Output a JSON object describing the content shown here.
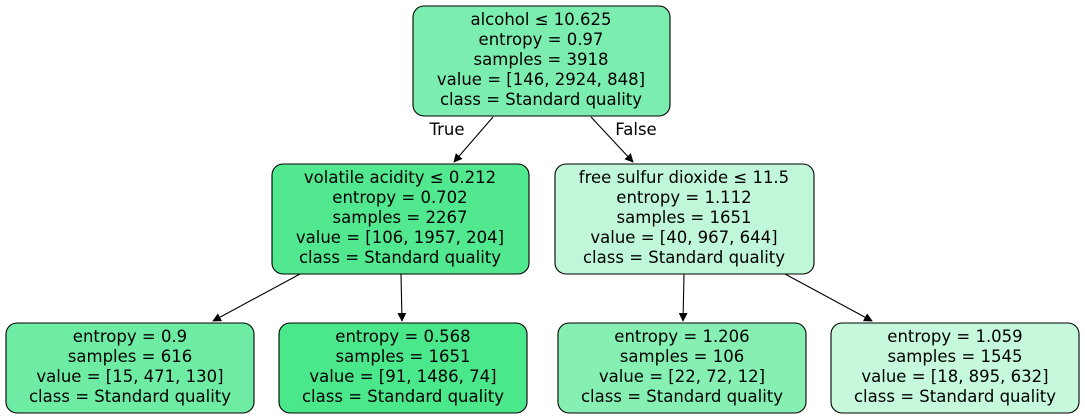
{
  "diagram": {
    "nodes": [
      {
        "id": "n0",
        "fill": "#7beeaf",
        "lines": [
          "alcohol ≤ 10.625",
          "entropy = 0.97",
          "samples = 3918",
          "value = [146, 2924, 848]",
          "class = Standard quality"
        ]
      },
      {
        "id": "n1",
        "fill": "#52e890",
        "lines": [
          "volatile acidity ≤ 0.212",
          "entropy = 0.702",
          "samples = 2267",
          "value = [106, 1957, 204]",
          "class = Standard quality"
        ]
      },
      {
        "id": "n2",
        "fill": "#c0f7d8",
        "lines": [
          "free sulfur dioxide ≤ 11.5",
          "entropy = 1.112",
          "samples = 1651",
          "value = [40, 967, 644]",
          "class = Standard quality"
        ]
      },
      {
        "id": "n3",
        "fill": "#6eeca4",
        "lines": [
          "entropy = 0.9",
          "samples = 616",
          "value = [15, 471, 130]",
          "class = Standard quality"
        ]
      },
      {
        "id": "n4",
        "fill": "#4ae78b",
        "lines": [
          "entropy = 0.568",
          "samples = 1651",
          "value = [91, 1486, 74]",
          "class = Standard quality"
        ]
      },
      {
        "id": "n5",
        "fill": "#86f0b3",
        "lines": [
          "entropy = 1.206",
          "samples = 106",
          "value = [22, 72, 12]",
          "class = Standard quality"
        ]
      },
      {
        "id": "n6",
        "fill": "#c6f8dc",
        "lines": [
          "entropy = 1.059",
          "samples = 1545",
          "value = [18, 895, 632]",
          "class = Standard quality"
        ]
      }
    ],
    "edges": [
      {
        "from": "n0",
        "to": "n1",
        "label": "True"
      },
      {
        "from": "n0",
        "to": "n2",
        "label": "False"
      },
      {
        "from": "n1",
        "to": "n3",
        "label": ""
      },
      {
        "from": "n1",
        "to": "n4",
        "label": ""
      },
      {
        "from": "n2",
        "to": "n5",
        "label": ""
      },
      {
        "from": "n2",
        "to": "n6",
        "label": ""
      }
    ]
  }
}
